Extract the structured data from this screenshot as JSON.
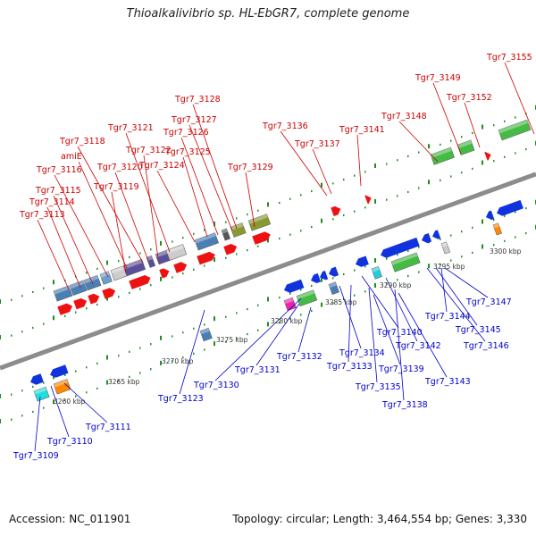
{
  "title": "Thioalkalivibrio sp. HL-EbGR7, complete genome",
  "footer": {
    "accession": "Accession: NC_011901",
    "summary": "Topology: circular; Length: 3,464,554 bp; Genes: 3,330"
  },
  "colors": {
    "backbone": "#8c8c8c",
    "ticks": "#1f8c1f",
    "forward_label": "#cc0000",
    "reverse_label": "#0000cc",
    "forward_gene": "#ee1111",
    "reverse_gene": "#1133dd"
  },
  "scale_labels": [
    "3260 kbp",
    "3265 kbp",
    "3270 kbp",
    "3275 kbp",
    "3280 kbp",
    "3285 kbp",
    "3290 kbp",
    "3295 kbp",
    "3300 kbp"
  ],
  "forward_labels": [
    "Tgr7_3155",
    "Tgr7_3149",
    "Tgr7_3152",
    "Tgr7_3128",
    "Tgr7_3148",
    "Tgr7_3127",
    "Tgr7_3121",
    "Tgr7_3136",
    "Tgr7_3126",
    "Tgr7_3141",
    "Tgr7_3118",
    "Tgr7_3122",
    "Tgr7_3125",
    "Tgr7_3137",
    "amiE",
    "Tgr7_3120",
    "Tgr7_3124",
    "Tgr7_3129",
    "Tgr7_3116",
    "Tgr7_3119",
    "Tgr7_3115",
    "Tgr7_3114",
    "Tgr7_3113"
  ],
  "reverse_labels": [
    "Tgr7_3147",
    "Tgr7_3144",
    "Tgr7_3145",
    "Tgr7_3146",
    "Tgr7_3140",
    "Tgr7_3142",
    "Tgr7_3134",
    "Tgr7_3132",
    "Tgr7_3133",
    "Tgr7_3139",
    "Tgr7_3131",
    "Tgr7_3143",
    "Tgr7_3130",
    "Tgr7_3135",
    "Tgr7_3123",
    "Tgr7_3138",
    "Tgr7_3111",
    "Tgr7_3110",
    "Tgr7_3109"
  ]
}
